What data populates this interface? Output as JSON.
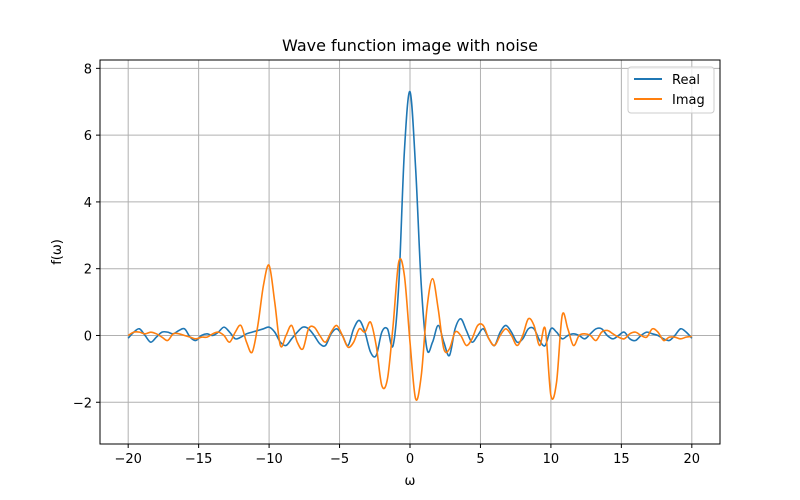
{
  "chart_data": {
    "type": "line",
    "title": "Wave function image with noise",
    "xlabel": "ω",
    "ylabel": "f(ω)",
    "xlim": [
      -22,
      22
    ],
    "ylim": [
      -3.25,
      8.25
    ],
    "xticks": [
      -20,
      -15,
      -10,
      -5,
      0,
      5,
      10,
      15,
      20
    ],
    "xtick_labels": [
      "−20",
      "−15",
      "−10",
      "−5",
      "0",
      "5",
      "10",
      "15",
      "20"
    ],
    "yticks": [
      -2,
      0,
      2,
      4,
      6,
      8
    ],
    "ytick_labels": [
      "−2",
      "0",
      "2",
      "4",
      "6",
      "8"
    ],
    "grid": true,
    "legend": "top-right",
    "series": [
      {
        "name": "Real",
        "color": "#1f77b4",
        "x": [
          -20,
          -19.6,
          -19.2,
          -18.8,
          -18.4,
          -18,
          -17.6,
          -17.2,
          -16.8,
          -16.4,
          -16,
          -15.6,
          -15.2,
          -14.8,
          -14.4,
          -14,
          -13.6,
          -13.2,
          -12.8,
          -12.4,
          -12,
          -11.6,
          -11.2,
          -10.8,
          -10.4,
          -10,
          -9.6,
          -9.2,
          -8.8,
          -8.4,
          -8,
          -7.6,
          -7.2,
          -6.8,
          -6.4,
          -6,
          -5.6,
          -5.2,
          -4.8,
          -4.4,
          -4,
          -3.6,
          -3.2,
          -2.8,
          -2.4,
          -2,
          -1.6,
          -1.2,
          -0.8,
          -0.4,
          0,
          0.4,
          0.8,
          1.2,
          1.6,
          2,
          2.4,
          2.8,
          3.2,
          3.6,
          4,
          4.4,
          4.8,
          5.2,
          5.6,
          6,
          6.4,
          6.8,
          7.2,
          7.6,
          8,
          8.4,
          8.8,
          9.2,
          9.6,
          10,
          10.4,
          10.8,
          11.2,
          11.6,
          12,
          12.4,
          12.8,
          13.2,
          13.6,
          14,
          14.4,
          14.8,
          15.2,
          15.6,
          16,
          16.4,
          16.8,
          17.2,
          17.6,
          18,
          18.4,
          18.8,
          19.2,
          19.6,
          20
        ],
        "y": [
          -0.08,
          0.1,
          0.2,
          0.0,
          -0.2,
          -0.05,
          0.1,
          0.1,
          0.05,
          0.15,
          0.2,
          -0.05,
          -0.15,
          0.0,
          0.05,
          0.0,
          0.1,
          0.25,
          0.1,
          -0.1,
          -0.05,
          0.05,
          0.1,
          0.15,
          0.2,
          0.25,
          0.1,
          -0.2,
          -0.3,
          -0.1,
          0.1,
          0.25,
          0.2,
          0.0,
          -0.25,
          -0.3,
          0.05,
          0.2,
          0.0,
          -0.3,
          0.2,
          0.45,
          0.1,
          -0.5,
          -0.6,
          0.1,
          0.2,
          -0.3,
          1.5,
          5.5,
          7.3,
          5.0,
          1.5,
          -0.4,
          -0.2,
          0.3,
          -0.2,
          -0.6,
          0.2,
          0.5,
          0.15,
          -0.2,
          0.0,
          0.2,
          -0.1,
          -0.3,
          0.1,
          0.3,
          0.1,
          -0.2,
          -0.1,
          0.2,
          0.2,
          -0.15,
          -0.3,
          0.2,
          0.1,
          -0.1,
          0.0,
          0.05,
          0.0,
          -0.1,
          0.05,
          0.2,
          0.2,
          0.0,
          -0.1,
          0.0,
          0.1,
          -0.1,
          -0.15,
          0.0,
          0.1,
          0.05,
          0.0,
          -0.1,
          -0.15,
          0.0,
          0.2,
          0.1,
          -0.08
        ]
      },
      {
        "name": "Imag",
        "color": "#ff7f0e",
        "x": [
          -20,
          -19.6,
          -19.2,
          -18.8,
          -18.4,
          -18,
          -17.6,
          -17.2,
          -16.8,
          -16.4,
          -16,
          -15.6,
          -15.2,
          -14.8,
          -14.4,
          -14,
          -13.6,
          -13.2,
          -12.8,
          -12.4,
          -12,
          -11.6,
          -11.2,
          -10.8,
          -10.4,
          -10,
          -9.6,
          -9.2,
          -8.8,
          -8.4,
          -8,
          -7.6,
          -7.2,
          -6.8,
          -6.4,
          -6,
          -5.6,
          -5.2,
          -4.8,
          -4.4,
          -4,
          -3.6,
          -3.2,
          -2.8,
          -2.4,
          -2,
          -1.6,
          -1.2,
          -0.8,
          -0.4,
          0,
          0.4,
          0.8,
          1.2,
          1.6,
          2,
          2.4,
          2.8,
          3.2,
          3.6,
          4,
          4.4,
          4.8,
          5.2,
          5.6,
          6,
          6.4,
          6.8,
          7.2,
          7.6,
          8,
          8.4,
          8.8,
          9.2,
          9.6,
          10,
          10.4,
          10.8,
          11.2,
          11.6,
          12,
          12.4,
          12.8,
          13.2,
          13.6,
          14,
          14.4,
          14.8,
          15.2,
          15.6,
          16,
          16.4,
          16.8,
          17.2,
          17.6,
          18,
          18.4,
          18.8,
          19.2,
          19.6,
          20
        ],
        "y": [
          0.0,
          0.1,
          0.1,
          0.05,
          0.1,
          0.05,
          -0.05,
          -0.15,
          0.05,
          0.05,
          0.0,
          -0.05,
          -0.1,
          -0.05,
          -0.05,
          0.05,
          0.1,
          0.0,
          -0.2,
          0.1,
          0.3,
          -0.2,
          -0.5,
          0.3,
          1.5,
          2.1,
          1.0,
          -0.3,
          0.0,
          0.3,
          -0.2,
          -0.4,
          0.2,
          0.25,
          0.0,
          -0.2,
          0.1,
          0.3,
          0.0,
          -0.35,
          -0.2,
          0.2,
          0.1,
          0.4,
          -0.3,
          -1.5,
          -1.3,
          0.3,
          2.2,
          1.8,
          -0.2,
          -1.9,
          -1.2,
          0.8,
          1.7,
          0.8,
          -0.4,
          -0.4,
          0.1,
          0.0,
          -0.3,
          -0.1,
          0.3,
          0.3,
          -0.1,
          -0.3,
          0.0,
          0.2,
          0.0,
          -0.3,
          0.0,
          0.5,
          0.3,
          -0.3,
          0.2,
          -1.8,
          -1.4,
          0.6,
          0.2,
          -0.3,
          0.0,
          0.05,
          0.0,
          -0.15,
          0.1,
          0.15,
          0.05,
          -0.05,
          -0.1,
          0.05,
          0.1,
          0.0,
          -0.05,
          0.2,
          0.1,
          -0.15,
          -0.05,
          -0.05,
          -0.1,
          -0.05,
          -0.03
        ]
      }
    ]
  }
}
